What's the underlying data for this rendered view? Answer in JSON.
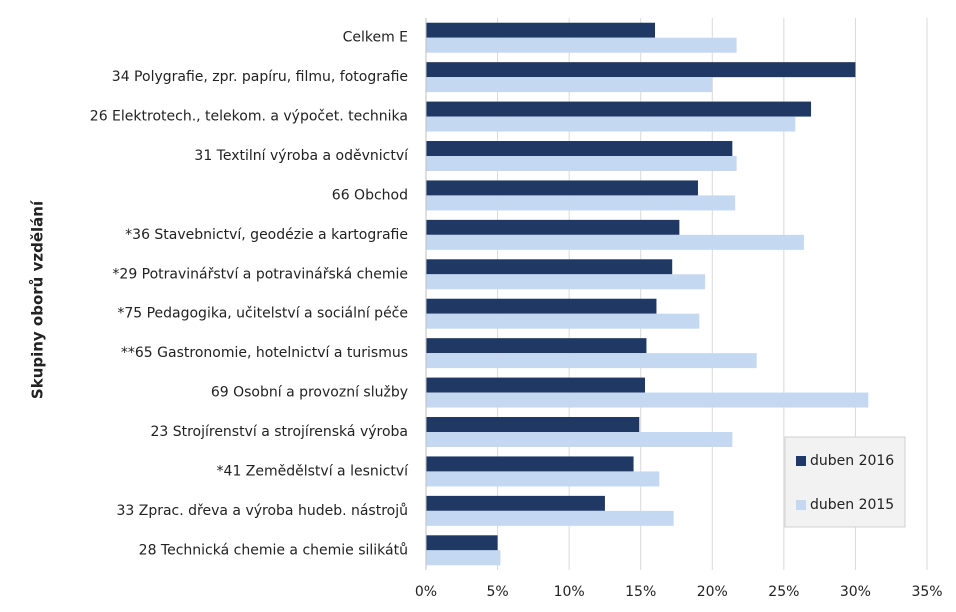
{
  "chart_data": {
    "type": "hbar",
    "y_axis_label": "Skupiny oborů vzdělání",
    "categories": [
      "Celkem E",
      "34 Polygrafie, zpr. papíru, filmu, fotografie",
      "26 Elektrotech., telekom. a výpočet. technika",
      "31 Textilní výroba a oděvnictví",
      "66 Obchod",
      "*36 Stavebnictví, geodézie a kartografie",
      "*29 Potravinářství a potravinářská chemie",
      "*75 Pedagogika, učitelství a sociální péče",
      "**65 Gastronomie, hotelnictví a turismus",
      "69 Osobní a provozní služby",
      "23 Strojírenství a strojírenská výroba",
      "*41 Zemědělství a lesnictví",
      "33 Zprac. dřeva a výroba hudeb. nástrojů",
      "28 Technická chemie a chemie silikátů"
    ],
    "series": [
      {
        "name": "duben 2016",
        "color": "#1f3864",
        "values": [
          16.0,
          30.0,
          26.9,
          21.4,
          19.0,
          17.7,
          17.2,
          16.1,
          15.4,
          15.3,
          14.9,
          14.5,
          12.5,
          5.0
        ]
      },
      {
        "name": "duben 2015",
        "color": "#c5d8f1",
        "values": [
          21.7,
          20.0,
          25.8,
          21.7,
          21.6,
          26.4,
          19.5,
          19.1,
          23.1,
          30.9,
          21.4,
          16.3,
          17.3,
          5.2
        ]
      }
    ],
    "xlim": [
      0,
      35
    ],
    "xticks": [
      {
        "value": 0,
        "label": "0%"
      },
      {
        "value": 5,
        "label": "5%"
      },
      {
        "value": 10,
        "label": "10%"
      },
      {
        "value": 15,
        "label": "15%"
      },
      {
        "value": 20,
        "label": "20%"
      },
      {
        "value": 25,
        "label": "25%"
      },
      {
        "value": 30,
        "label": "30%"
      },
      {
        "value": 35,
        "label": "35%"
      }
    ],
    "grid": true,
    "legend": "lower-right"
  }
}
